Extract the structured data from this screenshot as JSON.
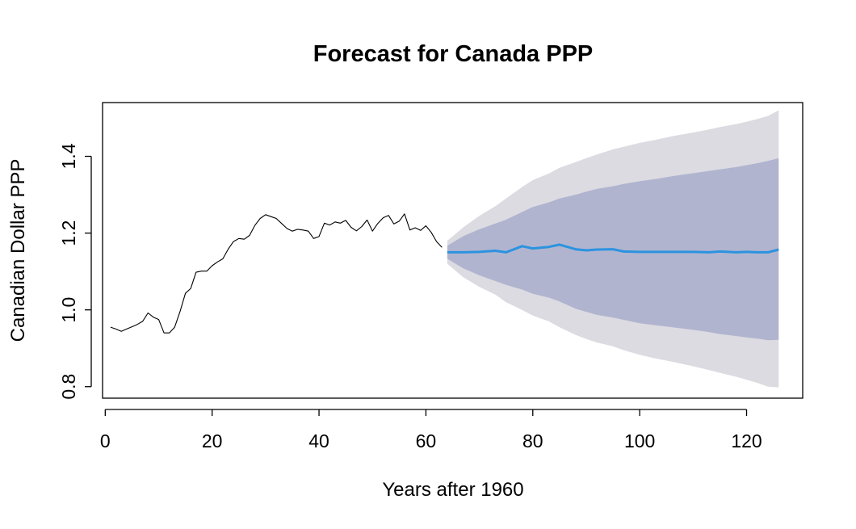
{
  "chart_data": {
    "type": "line",
    "title": "Forecast for Canada PPP",
    "xlabel": "Years after 1960",
    "ylabel": "Canadian Dollar PPP",
    "xlim": [
      -0.5,
      130.5
    ],
    "ylim": [
      0.77,
      1.54
    ],
    "x_ticks": [
      0,
      20,
      40,
      60,
      80,
      100,
      120
    ],
    "y_ticks": [
      0.8,
      1.0,
      1.2,
      1.4
    ],
    "y_tick_labels": [
      "0.8",
      "1.0",
      "1.2",
      "1.4"
    ],
    "grid": false,
    "legend": "none",
    "colors": {
      "history": "#000000",
      "forecast": "#2b93e0",
      "band80": "#b1b4cf",
      "band95": "#dbdbe1"
    },
    "series": [
      {
        "role": "history",
        "x": [
          1,
          2,
          3,
          4,
          5,
          6,
          7,
          8,
          9,
          10,
          11,
          12,
          13,
          14,
          15,
          16,
          17,
          18,
          19,
          20,
          21,
          22,
          23,
          24,
          25,
          26,
          27,
          28,
          29,
          30,
          31,
          32,
          33,
          34,
          35,
          36,
          37,
          38,
          39,
          40,
          41,
          42,
          43,
          44,
          45,
          46,
          47,
          48,
          49,
          50,
          51,
          52,
          53,
          54,
          55,
          56,
          57,
          58,
          59,
          60,
          61,
          62,
          63
        ],
        "y": [
          0.955,
          0.95,
          0.944,
          0.95,
          0.956,
          0.962,
          0.97,
          0.992,
          0.981,
          0.975,
          0.94,
          0.94,
          0.955,
          0.996,
          1.043,
          1.056,
          1.098,
          1.101,
          1.101,
          1.115,
          1.125,
          1.133,
          1.158,
          1.178,
          1.186,
          1.184,
          1.194,
          1.22,
          1.238,
          1.248,
          1.243,
          1.238,
          1.225,
          1.212,
          1.205,
          1.21,
          1.208,
          1.205,
          1.186,
          1.191,
          1.226,
          1.221,
          1.229,
          1.226,
          1.233,
          1.215,
          1.206,
          1.217,
          1.234,
          1.205,
          1.225,
          1.24,
          1.246,
          1.224,
          1.231,
          1.25,
          1.208,
          1.214,
          1.207,
          1.219,
          1.202,
          1.178,
          1.163
        ]
      },
      {
        "role": "forecast",
        "x": [
          64,
          67,
          70,
          73,
          75,
          78,
          80,
          83,
          85,
          88,
          90,
          92,
          95,
          97,
          100,
          103,
          106,
          110,
          113,
          115,
          118,
          120,
          122,
          124,
          126
        ],
        "point": [
          1.15,
          1.15,
          1.151,
          1.154,
          1.15,
          1.166,
          1.16,
          1.164,
          1.17,
          1.158,
          1.155,
          1.157,
          1.158,
          1.152,
          1.151,
          1.151,
          1.151,
          1.151,
          1.15,
          1.152,
          1.15,
          1.151,
          1.15,
          1.15,
          1.157
        ],
        "lo80": [
          1.133,
          1.108,
          1.09,
          1.075,
          1.065,
          1.053,
          1.042,
          1.032,
          1.022,
          1.003,
          0.995,
          0.987,
          0.98,
          0.974,
          0.965,
          0.96,
          0.955,
          0.948,
          0.942,
          0.937,
          0.932,
          0.928,
          0.925,
          0.921,
          0.922
        ],
        "hi80": [
          1.167,
          1.192,
          1.21,
          1.225,
          1.235,
          1.255,
          1.268,
          1.28,
          1.29,
          1.3,
          1.308,
          1.315,
          1.322,
          1.328,
          1.335,
          1.341,
          1.348,
          1.356,
          1.362,
          1.366,
          1.372,
          1.377,
          1.382,
          1.388,
          1.395
        ],
        "lo95": [
          1.12,
          1.085,
          1.06,
          1.04,
          1.02,
          1.0,
          0.985,
          0.97,
          0.955,
          0.935,
          0.924,
          0.915,
          0.905,
          0.895,
          0.883,
          0.873,
          0.865,
          0.853,
          0.843,
          0.836,
          0.826,
          0.818,
          0.81,
          0.8,
          0.798
        ],
        "hi95": [
          1.18,
          1.215,
          1.245,
          1.27,
          1.29,
          1.32,
          1.338,
          1.355,
          1.37,
          1.385,
          1.395,
          1.405,
          1.418,
          1.425,
          1.435,
          1.443,
          1.452,
          1.462,
          1.47,
          1.476,
          1.484,
          1.49,
          1.497,
          1.505,
          1.52
        ]
      }
    ]
  }
}
